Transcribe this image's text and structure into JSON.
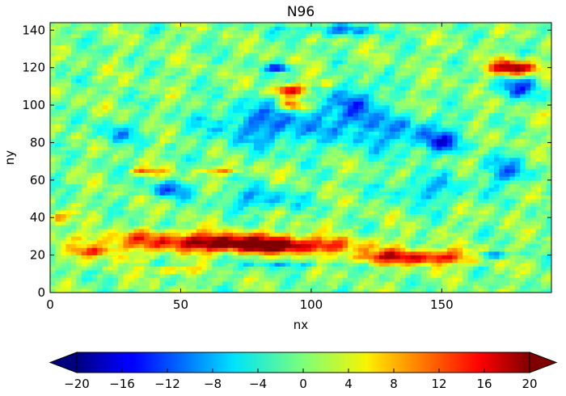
{
  "chart_data": {
    "type": "heatmap",
    "title": "N96",
    "xlabel": "nx",
    "ylabel": "ny",
    "xlim": [
      0,
      192
    ],
    "ylim": [
      0,
      144
    ],
    "x_ticks": [
      0,
      50,
      100,
      150
    ],
    "y_ticks": [
      0,
      20,
      40,
      60,
      80,
      100,
      120,
      140
    ],
    "grid": false,
    "colormap": "jet",
    "colorbar": {
      "orientation": "horizontal",
      "placement": "bottom",
      "extend": "both",
      "vmin": -20,
      "vmax": 20,
      "ticks": [
        -20,
        -16,
        -12,
        -8,
        -4,
        0,
        4,
        8,
        12,
        16,
        20
      ]
    },
    "features": [
      {
        "nx": 55,
        "ny": 28,
        "value": 14,
        "sx": 40,
        "sy": 5
      },
      {
        "nx": 85,
        "ny": 25,
        "value": 18,
        "sx": 30,
        "sy": 4
      },
      {
        "nx": 140,
        "ny": 19,
        "value": 17,
        "sx": 25,
        "sy": 4
      },
      {
        "nx": 18,
        "ny": 22,
        "value": 13,
        "sx": 8,
        "sy": 3
      },
      {
        "nx": 3,
        "ny": 40,
        "value": 12,
        "sx": 3,
        "sy": 3
      },
      {
        "nx": 178,
        "ny": 120,
        "value": 20,
        "sx": 10,
        "sy": 4
      },
      {
        "nx": 92,
        "ny": 108,
        "value": 18,
        "sx": 6,
        "sy": 3
      },
      {
        "nx": 93,
        "ny": 100,
        "value": 13,
        "sx": 5,
        "sy": 3
      },
      {
        "nx": 37,
        "ny": 65,
        "value": 11,
        "sx": 6,
        "sy": 2
      },
      {
        "nx": 65,
        "ny": 65,
        "value": 10,
        "sx": 8,
        "sy": 2
      },
      {
        "nx": 105,
        "ny": 112,
        "value": 8,
        "sx": 3,
        "sy": 2
      },
      {
        "nx": 48,
        "ny": 12,
        "value": 8,
        "sx": 10,
        "sy": 2
      },
      {
        "nx": 30,
        "ny": 18,
        "value": 6,
        "sx": 6,
        "sy": 2
      },
      {
        "nx": 85,
        "ny": 90,
        "value": -10,
        "sx": 25,
        "sy": 12
      },
      {
        "nx": 117,
        "ny": 100,
        "value": -12,
        "sx": 8,
        "sy": 12
      },
      {
        "nx": 180,
        "ny": 110,
        "value": -10,
        "sx": 10,
        "sy": 6
      },
      {
        "nx": 45,
        "ny": 55,
        "value": -11,
        "sx": 8,
        "sy": 4
      },
      {
        "nx": 88,
        "ny": 120,
        "value": -14,
        "sx": 5,
        "sy": 2
      },
      {
        "nx": 170,
        "ny": 20,
        "value": -13,
        "sx": 8,
        "sy": 2
      },
      {
        "nx": 135,
        "ny": 85,
        "value": -8,
        "sx": 20,
        "sy": 10
      },
      {
        "nx": 150,
        "ny": 80,
        "value": -9,
        "sx": 8,
        "sy": 6
      },
      {
        "nx": 25,
        "ny": 85,
        "value": -7,
        "sx": 8,
        "sy": 6
      },
      {
        "nx": 175,
        "ny": 65,
        "value": -8,
        "sx": 10,
        "sy": 8
      },
      {
        "nx": 80,
        "ny": 50,
        "value": -8,
        "sx": 15,
        "sy": 6
      },
      {
        "nx": 110,
        "ny": 140,
        "value": -8,
        "sx": 20,
        "sy": 3
      },
      {
        "nx": 145,
        "ny": 55,
        "value": -7,
        "sx": 15,
        "sy": 8
      },
      {
        "nx": 90,
        "ny": 15,
        "value": -6,
        "sx": 20,
        "sy": 2
      }
    ]
  }
}
